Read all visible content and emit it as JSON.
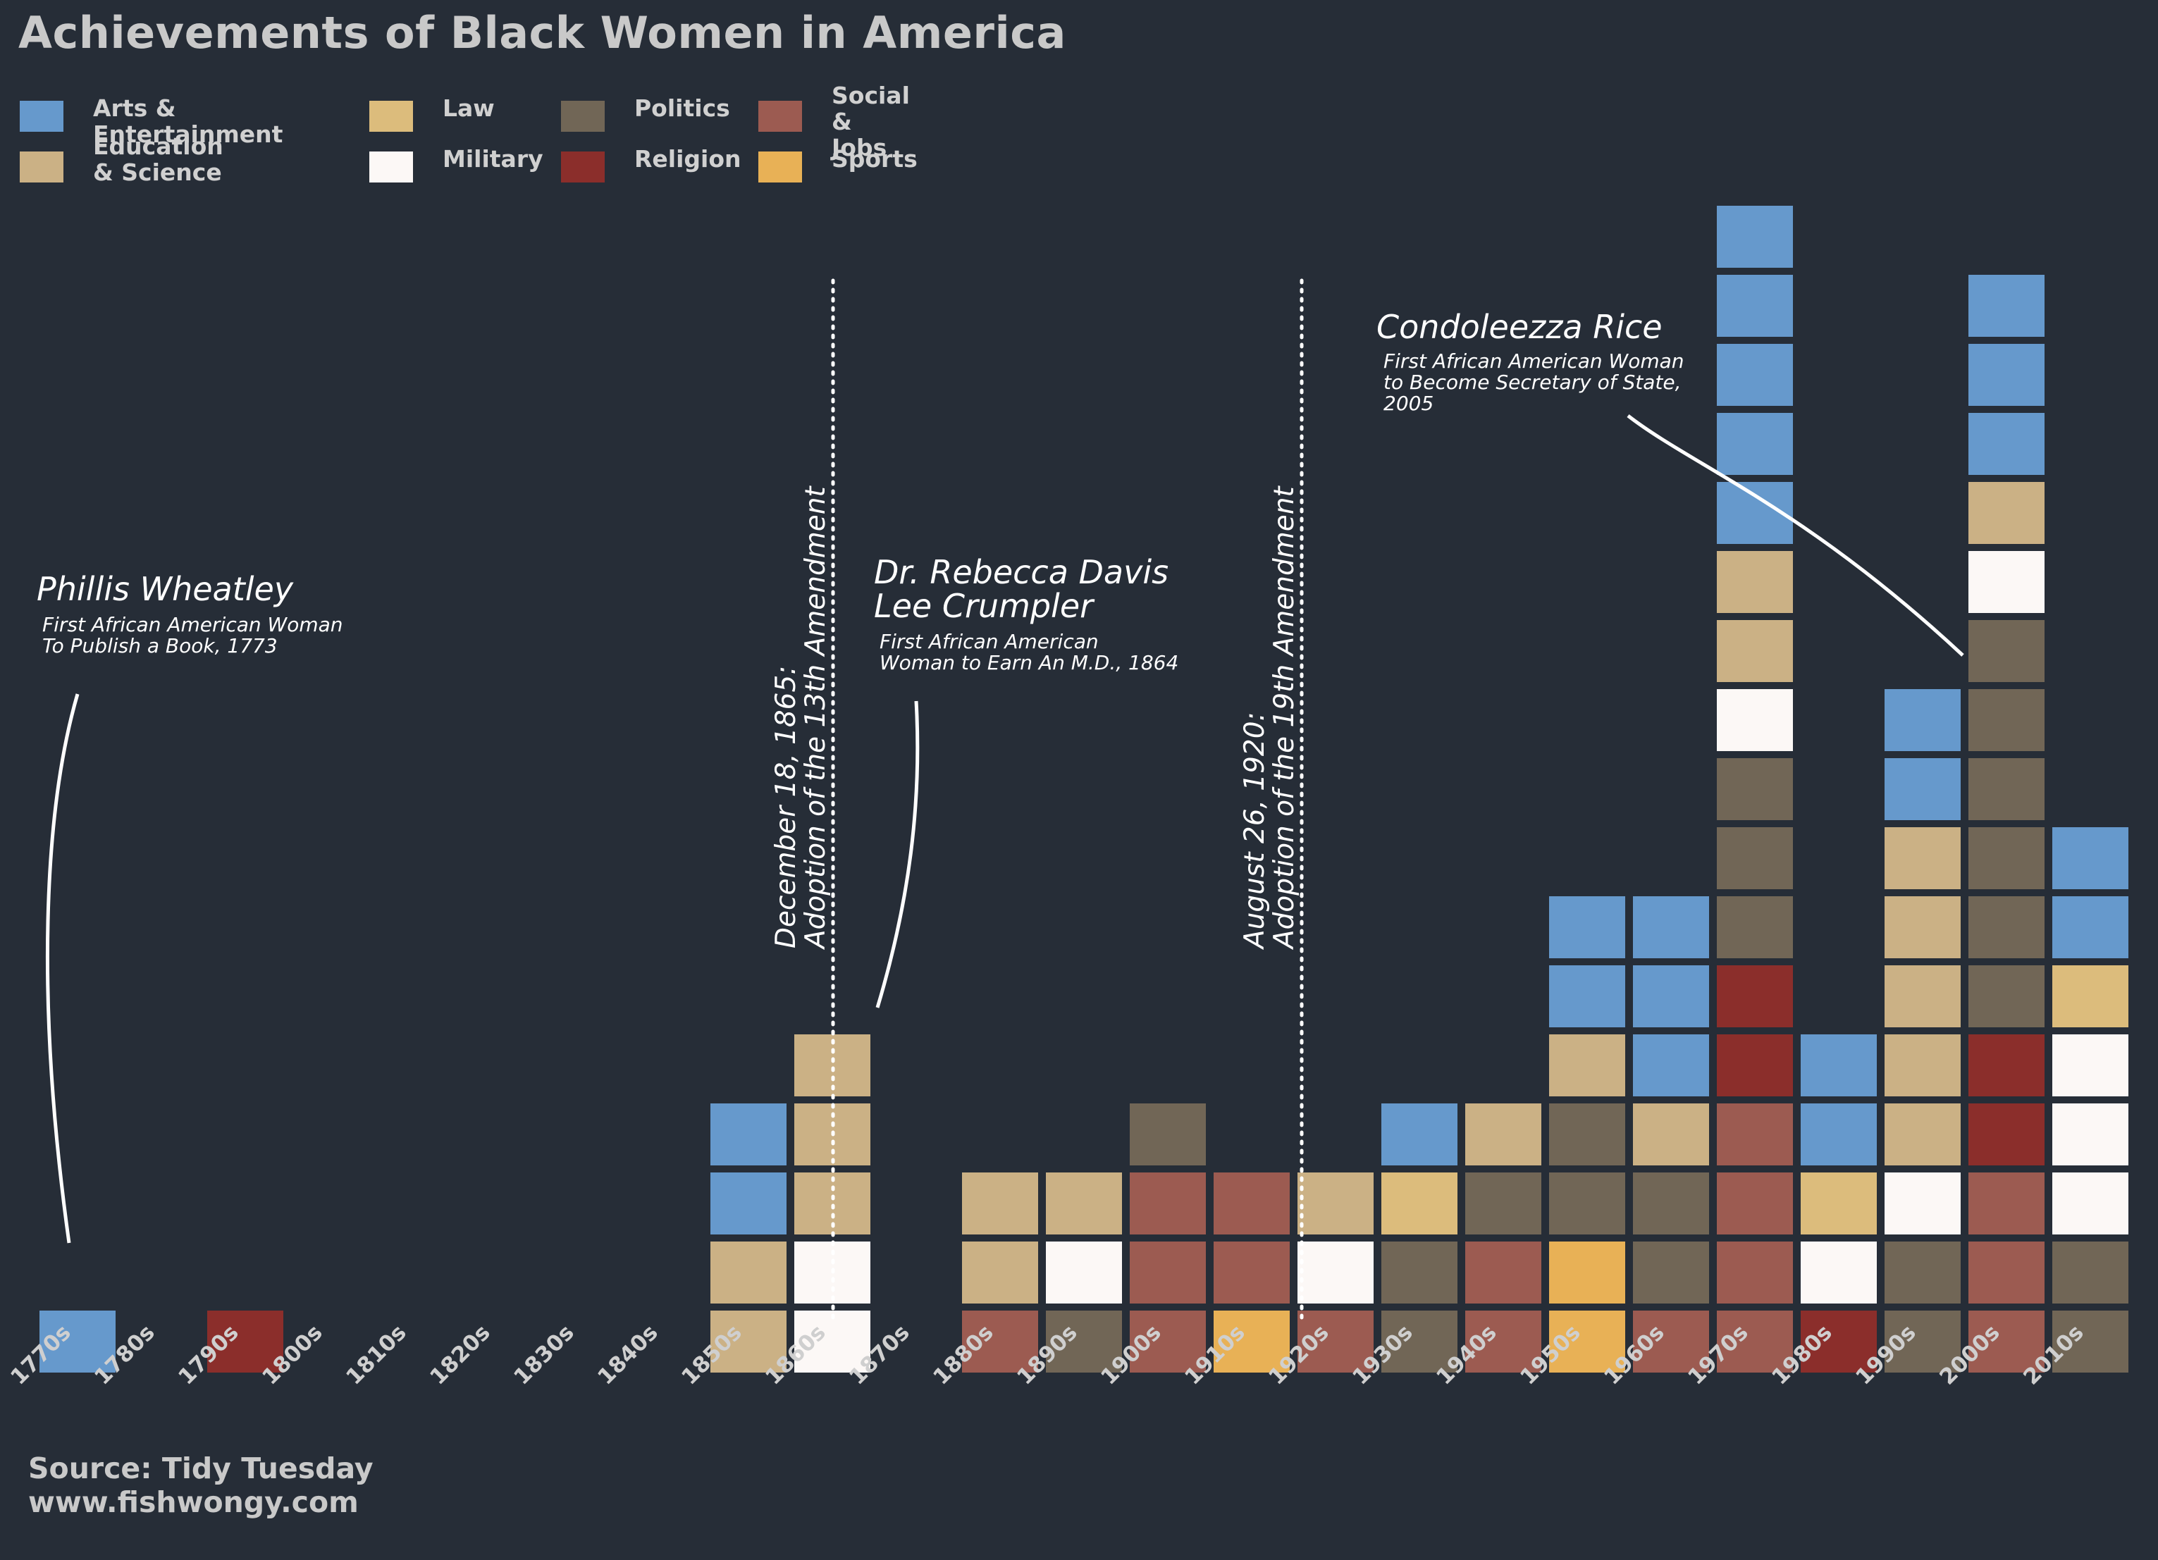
{
  "title": "Achievements of Black Women in America",
  "legend": [
    {
      "label": "Arts & Entertainment",
      "color": "#6699cc"
    },
    {
      "label": "Education\n& Science",
      "color": "#cbb185"
    },
    {
      "label": "Law",
      "color": "#dcbc7c"
    },
    {
      "label": "Military",
      "color": "#fcf8f6"
    },
    {
      "label": "Politics",
      "color": "#716656"
    },
    {
      "label": "Religion",
      "color": "#8b2e2b"
    },
    {
      "label": "Social\n& Jobs",
      "color": "#9c5b51"
    },
    {
      "label": "Sports",
      "color": "#e8b156"
    }
  ],
  "source": {
    "line1": "Source: Tidy Tuesday",
    "line2": "www.fishwongy.com"
  },
  "chart_data": {
    "type": "stacked-waffle",
    "title": "Achievements of Black Women in America",
    "x_label": "",
    "y_label": "",
    "categories": [
      "1770s",
      "1780s",
      "1790s",
      "1800s",
      "1810s",
      "1820s",
      "1830s",
      "1840s",
      "1850s",
      "1860s",
      "1870s",
      "1880s",
      "1890s",
      "1900s",
      "1910s",
      "1920s",
      "1930s",
      "1940s",
      "1950s",
      "1960s",
      "1970s",
      "1980s",
      "1990s",
      "2000s",
      "2010s"
    ],
    "category_colors": {
      "Arts & Entertainment": "#6699cc",
      "Education & Science": "#cbb185",
      "Law": "#dcbc7c",
      "Military": "#fcf8f6",
      "Politics": "#716656",
      "Religion": "#8b2e2b",
      "Social & Jobs": "#9c5b51",
      "Sports": "#e8b156"
    },
    "stacks": {
      "1770s": [
        "Arts & Entertainment"
      ],
      "1790s": [
        "Religion"
      ],
      "1850s": [
        "Education & Science",
        "Education & Science",
        "Arts & Entertainment",
        "Arts & Entertainment"
      ],
      "1860s": [
        "Military",
        "Military",
        "Education & Science",
        "Education & Science",
        "Education & Science"
      ],
      "1880s": [
        "Social & Jobs",
        "Education & Science",
        "Education & Science"
      ],
      "1890s": [
        "Politics",
        "Military",
        "Education & Science"
      ],
      "1900s": [
        "Social & Jobs",
        "Social & Jobs",
        "Social & Jobs",
        "Politics"
      ],
      "1910s": [
        "Sports",
        "Social & Jobs",
        "Social & Jobs"
      ],
      "1920s": [
        "Social & Jobs",
        "Military",
        "Education & Science"
      ],
      "1930s": [
        "Politics",
        "Politics",
        "Law",
        "Arts & Entertainment"
      ],
      "1940s": [
        "Social & Jobs",
        "Social & Jobs",
        "Politics",
        "Education & Science"
      ],
      "1950s": [
        "Sports",
        "Sports",
        "Politics",
        "Politics",
        "Education & Science",
        "Arts & Entertainment",
        "Arts & Entertainment"
      ],
      "1960s": [
        "Social & Jobs",
        "Politics",
        "Politics",
        "Education & Science",
        "Arts & Entertainment",
        "Arts & Entertainment",
        "Arts & Entertainment"
      ],
      "1970s": [
        "Social & Jobs",
        "Social & Jobs",
        "Social & Jobs",
        "Social & Jobs",
        "Religion",
        "Religion",
        "Politics",
        "Politics",
        "Politics",
        "Military",
        "Education & Science",
        "Education & Science",
        "Arts & Entertainment",
        "Arts & Entertainment",
        "Arts & Entertainment",
        "Arts & Entertainment",
        "Arts & Entertainment"
      ],
      "1980s": [
        "Religion",
        "Military",
        "Law",
        "Arts & Entertainment",
        "Arts & Entertainment"
      ],
      "1990s": [
        "Politics",
        "Politics",
        "Military",
        "Education & Science",
        "Education & Science",
        "Education & Science",
        "Education & Science",
        "Education & Science",
        "Arts & Entertainment",
        "Arts & Entertainment"
      ],
      "2000s": [
        "Social & Jobs",
        "Social & Jobs",
        "Social & Jobs",
        "Religion",
        "Religion",
        "Politics",
        "Politics",
        "Politics",
        "Politics",
        "Politics",
        "Politics",
        "Military",
        "Education & Science",
        "Arts & Entertainment",
        "Arts & Entertainment",
        "Arts & Entertainment"
      ],
      "2010s": [
        "Politics",
        "Politics",
        "Military",
        "Military",
        "Military",
        "Law",
        "Arts & Entertainment",
        "Arts & Entertainment"
      ]
    },
    "reference_lines": [
      {
        "x": "1860s",
        "label_line1": "December 18, 1865:",
        "label_line2": "Adoption of the 13th Amendment"
      },
      {
        "x": "1920s",
        "label_line1": "August 26, 1920:",
        "label_line2": "Adoption of the 19th Amendment"
      }
    ],
    "annotations": [
      {
        "decade": "1770s",
        "name": "Phillis Wheatley",
        "desc_line1": "First African American Woman",
        "desc_line2": "To Publish a Book, 1773"
      },
      {
        "decade": "1860s",
        "name_line1": "Dr. Rebecca Davis",
        "name_line2": "Lee Crumpler",
        "desc_line1": "First African American",
        "desc_line2": "Woman to Earn An M.D., 1864"
      },
      {
        "decade": "2000s",
        "name": "Condoleezza Rice",
        "desc_line1": "First African American Woman",
        "desc_line2": "to Become Secretary of State,",
        "desc_line3": "2005"
      }
    ]
  }
}
